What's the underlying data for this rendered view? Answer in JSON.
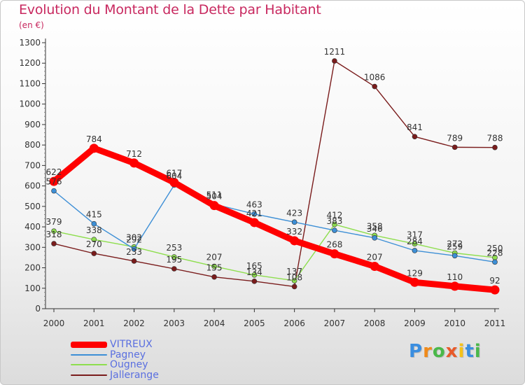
{
  "title": "Evolution du Montant de la Dette par Habitant",
  "unit": "(en €)",
  "logo": {
    "letters": [
      "P",
      "r",
      "o",
      "x",
      "i",
      "t",
      "i"
    ],
    "colors": [
      "#3a8ee0",
      "#f08a1a",
      "#4ab84a",
      "#e85a2a",
      "#f5c21a",
      "#3a8ee0",
      "#4ab84a"
    ]
  },
  "chart_data": {
    "type": "line",
    "categories": [
      "2000",
      "2001",
      "2002",
      "2003",
      "2004",
      "2005",
      "2006",
      "2007",
      "2008",
      "2009",
      "2010",
      "2011"
    ],
    "ylim": [
      0,
      1300
    ],
    "yticks": [
      "0",
      "100",
      "200",
      "300",
      "400",
      "500",
      "600",
      "700",
      "800",
      "900",
      "1000",
      "1100",
      "1200",
      "1300"
    ],
    "grid": "off",
    "legend_position": "bottom-left",
    "series": [
      {
        "name": "VITREUX",
        "color": "#ff0000",
        "values": [
          622,
          784,
          712,
          617,
          504,
          421,
          332,
          268,
          207,
          129,
          110,
          92
        ]
      },
      {
        "name": "Pagney",
        "color": "#3d8fd6",
        "values": [
          576,
          415,
          292,
          604,
          511,
          463,
          423,
          383,
          346,
          284,
          259,
          228
        ]
      },
      {
        "name": "Ougney",
        "color": "#8ede4e",
        "values": [
          379,
          338,
          302,
          253,
          207,
          165,
          137,
          412,
          358,
          317,
          272,
          250
        ]
      },
      {
        "name": "Jallerange",
        "color": "#7a1c1c",
        "values": [
          318,
          270,
          233,
          195,
          155,
          134,
          108,
          1211,
          1086,
          841,
          789,
          788
        ]
      }
    ],
    "labels": [
      {
        "series": 0,
        "text": [
          "622",
          "784",
          "712",
          "617",
          "504",
          "421",
          "332",
          "268",
          "207",
          "129",
          "110",
          "92"
        ]
      },
      {
        "series": 1,
        "text": [
          "576",
          "415",
          "292",
          "604",
          "511",
          "463",
          "423",
          "383",
          "346",
          "284",
          "259",
          "228"
        ]
      },
      {
        "series": 2,
        "text": [
          "379",
          "338",
          "302",
          "253",
          "207",
          "165",
          "137",
          "412",
          "358",
          "317",
          "272",
          "250"
        ]
      },
      {
        "series": 3,
        "text": [
          "318",
          "270",
          "233",
          "195",
          "155",
          "134",
          "108",
          "1211",
          "1086",
          "841",
          "789",
          "788"
        ]
      }
    ]
  }
}
